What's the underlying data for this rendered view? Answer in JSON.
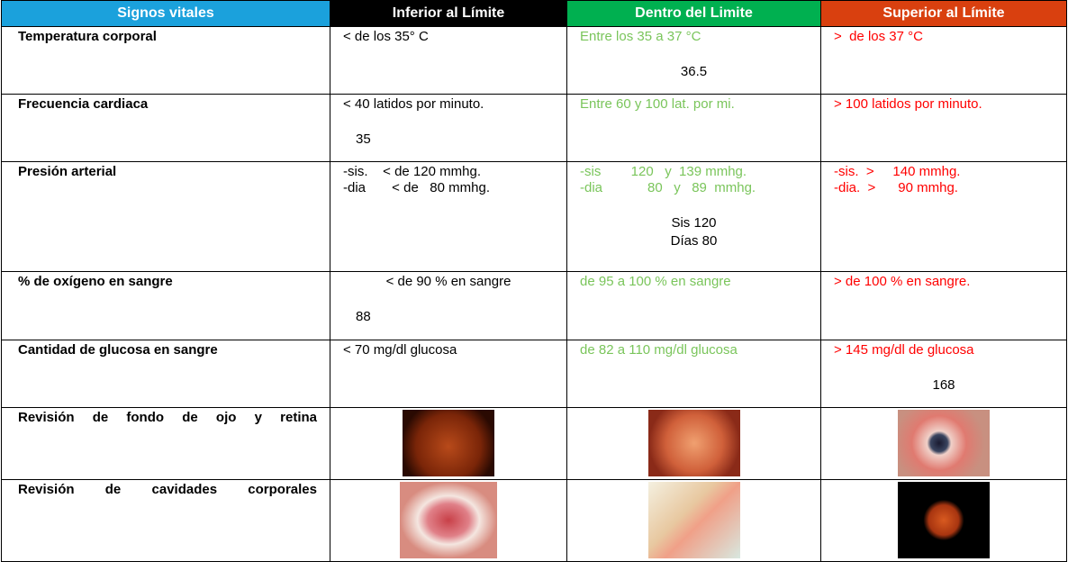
{
  "table": {
    "header": [
      "Signos vitales",
      "Inferior al Límite",
      "Dentro del Limite",
      "Superior al Límite"
    ],
    "rows": [
      {
        "label": "Temperatura corporal",
        "low": [
          "< de los 35° C"
        ],
        "normal": [
          "Entre los 35 a 37 °C"
        ],
        "normal_reading": [
          "36.5"
        ],
        "high": [
          ">  de los 37 °C"
        ]
      },
      {
        "label": "Frecuencia cardiaca",
        "low": [
          "< 40 latidos por minuto."
        ],
        "low_reading": [
          "35"
        ],
        "normal": [
          "Entre 60 y 100 lat. por mi."
        ],
        "high": [
          "> 100 latidos por minuto."
        ]
      },
      {
        "label": "Presión arterial",
        "low": [
          "-sis.    < de 120 mmhg.",
          "-dia       < de   80 mmhg."
        ],
        "normal": [
          "-sis        120   y  139 mmhg.",
          "-dia            80   y   89  mmhg."
        ],
        "normal_reading": [
          "Sis 120",
          "Días 80"
        ],
        "high": [
          "-sis.  >     140 mmhg.",
          "-dia.  >      90 mmhg."
        ]
      },
      {
        "label": "% de oxígeno en sangre",
        "low": [
          "< de 90 % en sangre"
        ],
        "low_reading": [
          "88"
        ],
        "normal": [
          "de 95 a 100 % en sangre"
        ],
        "high": [
          "> de 100 % en sangre."
        ]
      },
      {
        "label": "Cantidad de glucosa en sangre",
        "low": [
          "< 70 mg/dl glucosa"
        ],
        "normal": [
          "de 82 a 110 mg/dl glucosa"
        ],
        "high": [
          "> 145 mg/dl de glucosa"
        ],
        "high_reading": [
          "168"
        ]
      },
      {
        "label": "Revisión de fondo de ojo y retina"
      },
      {
        "label": "Revisión de cavidades corporales"
      }
    ]
  }
}
